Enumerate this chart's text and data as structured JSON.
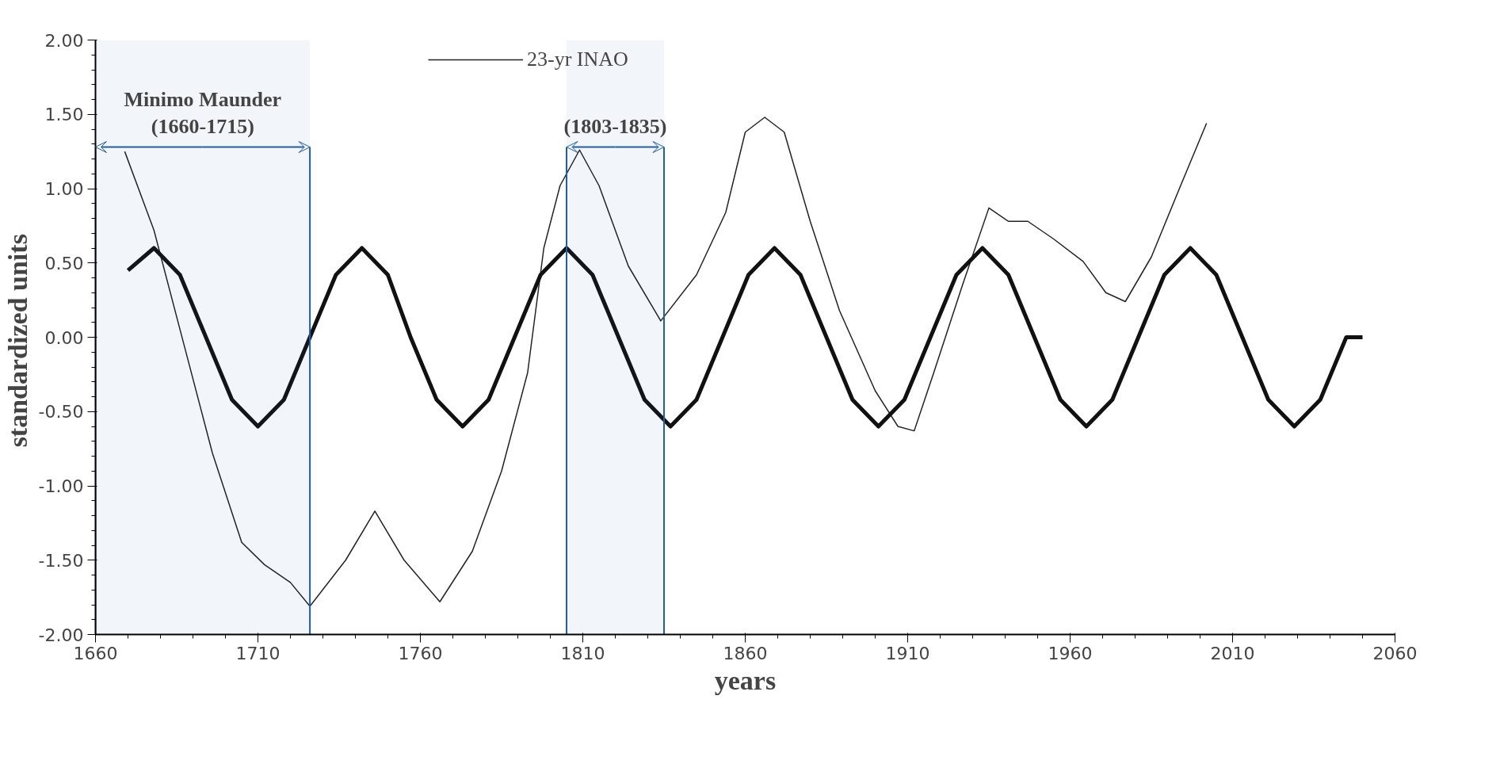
{
  "chart_data": {
    "type": "line",
    "xlabel": "years",
    "ylabel": "standardized  units",
    "xlim": [
      1660,
      2060
    ],
    "ylim": [
      -2,
      2
    ],
    "xticks": [
      1660,
      1710,
      1760,
      1810,
      1860,
      1910,
      1960,
      2010,
      2060
    ],
    "yticks": [
      {
        "value": -2,
        "label": "-2.00"
      },
      {
        "value": -1.5,
        "label": "-1.50"
      },
      {
        "value": -1,
        "label": "-1.00"
      },
      {
        "value": -0.5,
        "label": "-0.50"
      },
      {
        "value": 0,
        "label": "0.00"
      },
      {
        "value": 0.5,
        "label": "0.50"
      },
      {
        "value": 1,
        "label": "1.00"
      },
      {
        "value": 1.5,
        "label": "1.50"
      },
      {
        "value": 2,
        "label": "2.00"
      }
    ],
    "grid": false,
    "legend": "top left",
    "line_style": "solid",
    "series": [
      {
        "name": "23-yr INAO",
        "color": "#222222",
        "x": [
          1669,
          1678,
          1687,
          1696,
          1705,
          1712,
          1720,
          1726,
          1737,
          1746,
          1755,
          1766,
          1776,
          1785,
          1793,
          1798,
          1803,
          1809,
          1815,
          1824,
          1834,
          1845,
          1854,
          1860,
          1866,
          1872,
          1880,
          1889,
          1900,
          1907,
          1912,
          1918,
          1927,
          1935,
          1941,
          1947,
          1955,
          1964,
          1971,
          1977,
          1985,
          1994,
          2002
        ],
        "values": [
          1.25,
          0.72,
          -0.03,
          -0.78,
          -1.38,
          -1.53,
          -1.65,
          -1.81,
          -1.5,
          -1.17,
          -1.5,
          -1.78,
          -1.44,
          -0.9,
          -0.24,
          0.6,
          1.02,
          1.26,
          1.02,
          0.48,
          0.11,
          0.42,
          0.84,
          1.38,
          1.48,
          1.38,
          0.78,
          0.18,
          -0.36,
          -0.6,
          -0.63,
          -0.24,
          0.36,
          0.87,
          0.78,
          0.78,
          0.66,
          0.51,
          0.3,
          0.24,
          0.54,
          1.02,
          1.44
        ]
      },
      {
        "color": "#111111",
        "x": [
          1670,
          1678,
          1686,
          1694,
          1702,
          1710,
          1718,
          1726,
          1734,
          1742,
          1750,
          1757,
          1765,
          1773,
          1781,
          1789,
          1797,
          1805,
          1813,
          1821,
          1829,
          1837,
          1845,
          1853,
          1861,
          1869,
          1877,
          1885,
          1893,
          1901,
          1909,
          1917,
          1925,
          1933,
          1941,
          1949,
          1957,
          1965,
          1973,
          1981,
          1989,
          1997,
          2005,
          2013,
          2021,
          2029,
          2037,
          2045,
          2050
        ],
        "values": [
          0.45,
          0.6,
          0.42,
          0,
          -0.42,
          -0.6,
          -0.42,
          0,
          0.42,
          0.6,
          0.42,
          0,
          -0.42,
          -0.6,
          -0.42,
          0,
          0.42,
          0.6,
          0.42,
          0,
          -0.42,
          -0.6,
          -0.42,
          0,
          0.42,
          0.6,
          0.42,
          0,
          -0.42,
          -0.6,
          -0.42,
          0,
          0.42,
          0.6,
          0.42,
          0,
          -0.42,
          -0.6,
          -0.42,
          0,
          0.42,
          0.6,
          0.42,
          0,
          -0.42,
          -0.6,
          -0.42,
          0,
          0.0
        ]
      }
    ],
    "ref_lines": [
      {
        "axis": "x",
        "value": 1660,
        "color": "#1f5fa8"
      },
      {
        "axis": "x",
        "value": 1726,
        "color": "#1f5fa8"
      },
      {
        "axis": "x",
        "value": 1805,
        "color": "#1f5fa8"
      },
      {
        "axis": "x",
        "value": 1835,
        "color": "#1f5fa8"
      }
    ],
    "bands": [
      {
        "axis": "x",
        "from": 1660,
        "to": 1726,
        "label": "Minimo Maunder\n(1660-1715)",
        "color": "#1f5fa8"
      },
      {
        "axis": "x",
        "from": 1805,
        "to": 1835,
        "label": "(1803-1835)",
        "color": "#1f5fa8"
      }
    ]
  }
}
